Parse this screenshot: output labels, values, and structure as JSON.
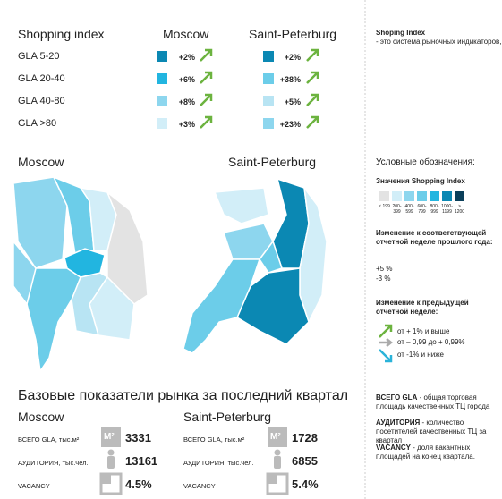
{
  "index_table": {
    "title": "Shopping index",
    "columns": [
      "Moscow",
      "Saint-Peterburg"
    ],
    "rows": [
      {
        "label": "GLA 5-20",
        "values": [
          "+2%",
          "+2%"
        ]
      },
      {
        "label": "GLA 20-40",
        "values": [
          "+6%",
          "+38%"
        ]
      },
      {
        "label": "GLA 40-80",
        "values": [
          "+8%",
          "+5%"
        ]
      },
      {
        "label": "GLA >80",
        "values": [
          "+3%",
          "+23%"
        ]
      }
    ]
  },
  "maps": {
    "titles": [
      "Moscow",
      "Saint-Peterburg"
    ]
  },
  "sidebar": {
    "intro_bold": "Shoping Index",
    "intro": " - это система рыночных индикаторов, отображающая динамику активности потребителей. Индикаторы строятся на базе информации о посещаемости объектов торговой недвижимости.",
    "legend_title": "Условные обозначения:",
    "scale_title": "Значения Shopping Index",
    "scale_labels": [
      "< 199",
      "200-399",
      "400-599",
      "600-799",
      "800-999",
      "1000-1199",
      "> 1200"
    ],
    "yoy_title": "Изменение к соответствующей отчетной неделе прошлого года:",
    "yoy_examples": [
      "+5 %",
      "-3 %"
    ],
    "wow_title": "Изменение к предыдущей отчетной неделе:",
    "wow_items": [
      "от + 1% и выше",
      "от – 0,99 до + 0,99%",
      "от -1% и ниже"
    ],
    "definitions": [
      {
        "term": "ВСЕГО GLA",
        "text": " - общая торговая площадь качественных ТЦ города"
      },
      {
        "term": "АУДИТОРИЯ",
        "text": " - количество посетителей качественных ТЦ за квартал"
      },
      {
        "term": "VACANCY",
        "text": " - доля вакантных площадей на конец квартала."
      }
    ]
  },
  "market": {
    "title": "Базовые показатели рынка за последний квартал",
    "icon_label": "M²",
    "metrics": [
      "ВСЕГО GLA, тыс.м²",
      "АУДИТОРИЯ, тыс.чел.",
      "VACANCY"
    ],
    "cities": [
      {
        "name": "Moscow",
        "values": [
          "3331",
          "13161",
          "4.5%"
        ]
      },
      {
        "name": "Saint-Peterburg",
        "values": [
          "1728",
          "6855",
          "5.4%"
        ]
      }
    ]
  }
}
